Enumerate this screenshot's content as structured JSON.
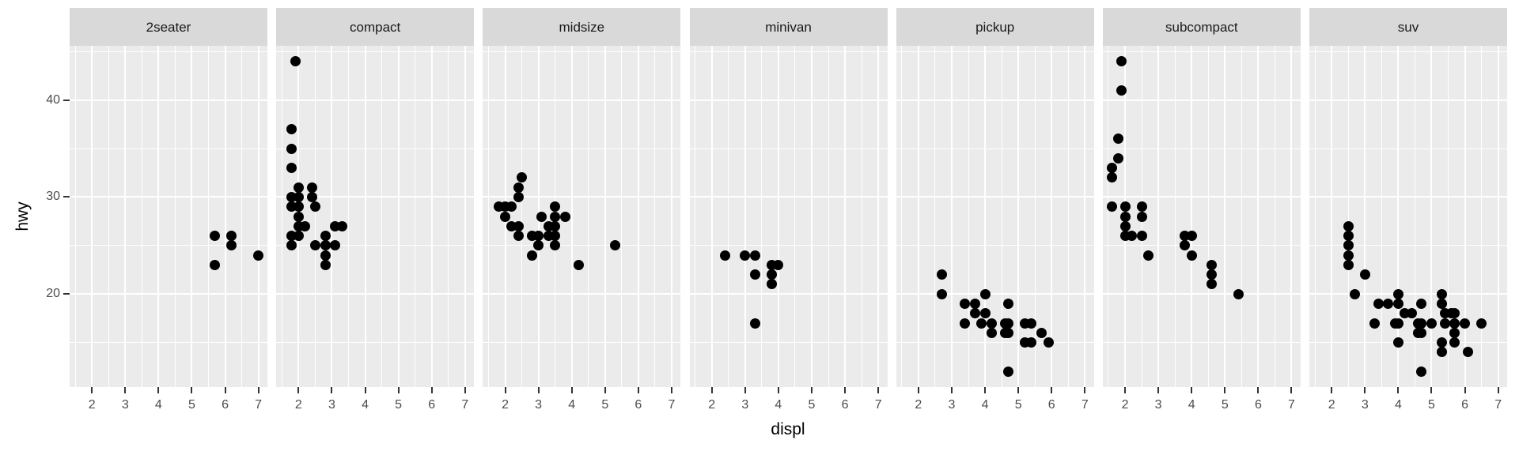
{
  "chart_data": {
    "type": "scatter",
    "title": "",
    "xlabel": "displ",
    "ylabel": "hwy",
    "legend": "none",
    "grid": "on",
    "facet_variable": "class",
    "x_ticks": [
      2,
      3,
      4,
      5,
      6,
      7
    ],
    "y_ticks": [
      20,
      30,
      40
    ],
    "x_minor": [
      1.5,
      2.5,
      3.5,
      4.5,
      5.5,
      6.5
    ],
    "y_minor": [
      15,
      25,
      35,
      45
    ],
    "xlim": [
      1.33,
      7.27
    ],
    "ylim": [
      10.4,
      45.6
    ],
    "colors": {
      "point": "#000000",
      "panel_bg": "#ebebeb",
      "strip_bg": "#d9d9d9",
      "grid": "#ffffff",
      "tick_text": "#4d4d4d",
      "strip_text": "#1a1a1a",
      "axis_title_text": "#000000"
    },
    "facets": [
      {
        "label": "2seater",
        "points": [
          [
            5.7,
            26
          ],
          [
            6.2,
            26
          ],
          [
            6.2,
            25
          ],
          [
            7.0,
            24
          ],
          [
            5.7,
            23
          ]
        ]
      },
      {
        "label": "compact",
        "points": [
          [
            1.9,
            44
          ],
          [
            1.8,
            37
          ],
          [
            1.8,
            35
          ],
          [
            1.8,
            33
          ],
          [
            2.0,
            31
          ],
          [
            2.4,
            31
          ],
          [
            1.8,
            30
          ],
          [
            2.0,
            30
          ],
          [
            2.4,
            30
          ],
          [
            1.8,
            29
          ],
          [
            2.0,
            29
          ],
          [
            2.5,
            29
          ],
          [
            2.0,
            28
          ],
          [
            2.0,
            27
          ],
          [
            2.2,
            27
          ],
          [
            3.1,
            27
          ],
          [
            3.3,
            27
          ],
          [
            1.8,
            26
          ],
          [
            2.0,
            26
          ],
          [
            2.8,
            26
          ],
          [
            1.8,
            25
          ],
          [
            2.5,
            25
          ],
          [
            2.8,
            25
          ],
          [
            3.1,
            25
          ],
          [
            2.8,
            24
          ],
          [
            2.8,
            23
          ]
        ]
      },
      {
        "label": "midsize",
        "points": [
          [
            2.5,
            32
          ],
          [
            2.4,
            31
          ],
          [
            2.4,
            30
          ],
          [
            1.8,
            29
          ],
          [
            2.0,
            29
          ],
          [
            2.2,
            29
          ],
          [
            3.5,
            29
          ],
          [
            2.0,
            28
          ],
          [
            3.1,
            28
          ],
          [
            3.5,
            28
          ],
          [
            3.8,
            28
          ],
          [
            2.2,
            27
          ],
          [
            2.4,
            27
          ],
          [
            3.3,
            27
          ],
          [
            3.5,
            27
          ],
          [
            2.4,
            26
          ],
          [
            2.8,
            26
          ],
          [
            3.0,
            26
          ],
          [
            3.3,
            26
          ],
          [
            3.5,
            26
          ],
          [
            3.0,
            25
          ],
          [
            3.5,
            25
          ],
          [
            5.3,
            25
          ],
          [
            2.8,
            24
          ],
          [
            4.2,
            23
          ]
        ]
      },
      {
        "label": "minivan",
        "points": [
          [
            2.4,
            24
          ],
          [
            3.0,
            24
          ],
          [
            3.3,
            24
          ],
          [
            3.8,
            23
          ],
          [
            4.0,
            23
          ],
          [
            3.3,
            22
          ],
          [
            3.8,
            22
          ],
          [
            3.8,
            21
          ],
          [
            3.3,
            17
          ]
        ]
      },
      {
        "label": "pickup",
        "points": [
          [
            2.7,
            22
          ],
          [
            2.7,
            20
          ],
          [
            4.0,
            20
          ],
          [
            3.4,
            19
          ],
          [
            3.7,
            19
          ],
          [
            4.7,
            19
          ],
          [
            3.7,
            18
          ],
          [
            4.0,
            18
          ],
          [
            3.4,
            17
          ],
          [
            3.9,
            17
          ],
          [
            4.2,
            17
          ],
          [
            4.6,
            17
          ],
          [
            4.7,
            17
          ],
          [
            5.2,
            17
          ],
          [
            5.4,
            17
          ],
          [
            4.2,
            16
          ],
          [
            4.6,
            16
          ],
          [
            4.7,
            16
          ],
          [
            5.7,
            16
          ],
          [
            5.2,
            15
          ],
          [
            5.4,
            15
          ],
          [
            5.9,
            15
          ],
          [
            4.7,
            12
          ]
        ]
      },
      {
        "label": "subcompact",
        "points": [
          [
            1.9,
            44
          ],
          [
            1.9,
            41
          ],
          [
            1.8,
            36
          ],
          [
            1.8,
            34
          ],
          [
            1.6,
            33
          ],
          [
            1.6,
            32
          ],
          [
            1.6,
            29
          ],
          [
            2.0,
            29
          ],
          [
            2.5,
            29
          ],
          [
            2.0,
            28
          ],
          [
            2.5,
            28
          ],
          [
            2.0,
            27
          ],
          [
            2.0,
            26
          ],
          [
            2.2,
            26
          ],
          [
            2.5,
            26
          ],
          [
            3.8,
            26
          ],
          [
            4.0,
            26
          ],
          [
            3.8,
            25
          ],
          [
            2.7,
            24
          ],
          [
            4.0,
            24
          ],
          [
            4.6,
            23
          ],
          [
            4.6,
            22
          ],
          [
            4.6,
            21
          ],
          [
            5.4,
            20
          ]
        ]
      },
      {
        "label": "suv",
        "points": [
          [
            2.5,
            27
          ],
          [
            2.5,
            26
          ],
          [
            2.5,
            25
          ],
          [
            2.5,
            24
          ],
          [
            2.5,
            23
          ],
          [
            3.0,
            22
          ],
          [
            2.7,
            20
          ],
          [
            4.0,
            20
          ],
          [
            5.3,
            20
          ],
          [
            3.4,
            19
          ],
          [
            3.7,
            19
          ],
          [
            4.0,
            19
          ],
          [
            4.7,
            19
          ],
          [
            5.3,
            19
          ],
          [
            4.2,
            18
          ],
          [
            4.4,
            18
          ],
          [
            5.4,
            18
          ],
          [
            5.6,
            18
          ],
          [
            5.7,
            18
          ],
          [
            3.3,
            17
          ],
          [
            3.9,
            17
          ],
          [
            4.0,
            17
          ],
          [
            4.6,
            17
          ],
          [
            4.7,
            17
          ],
          [
            5.0,
            17
          ],
          [
            5.4,
            17
          ],
          [
            5.7,
            17
          ],
          [
            6.0,
            17
          ],
          [
            6.5,
            17
          ],
          [
            4.6,
            16
          ],
          [
            4.7,
            16
          ],
          [
            5.7,
            16
          ],
          [
            4.0,
            15
          ],
          [
            5.3,
            15
          ],
          [
            5.7,
            15
          ],
          [
            5.3,
            14
          ],
          [
            6.1,
            14
          ],
          [
            4.7,
            12
          ]
        ]
      }
    ]
  }
}
